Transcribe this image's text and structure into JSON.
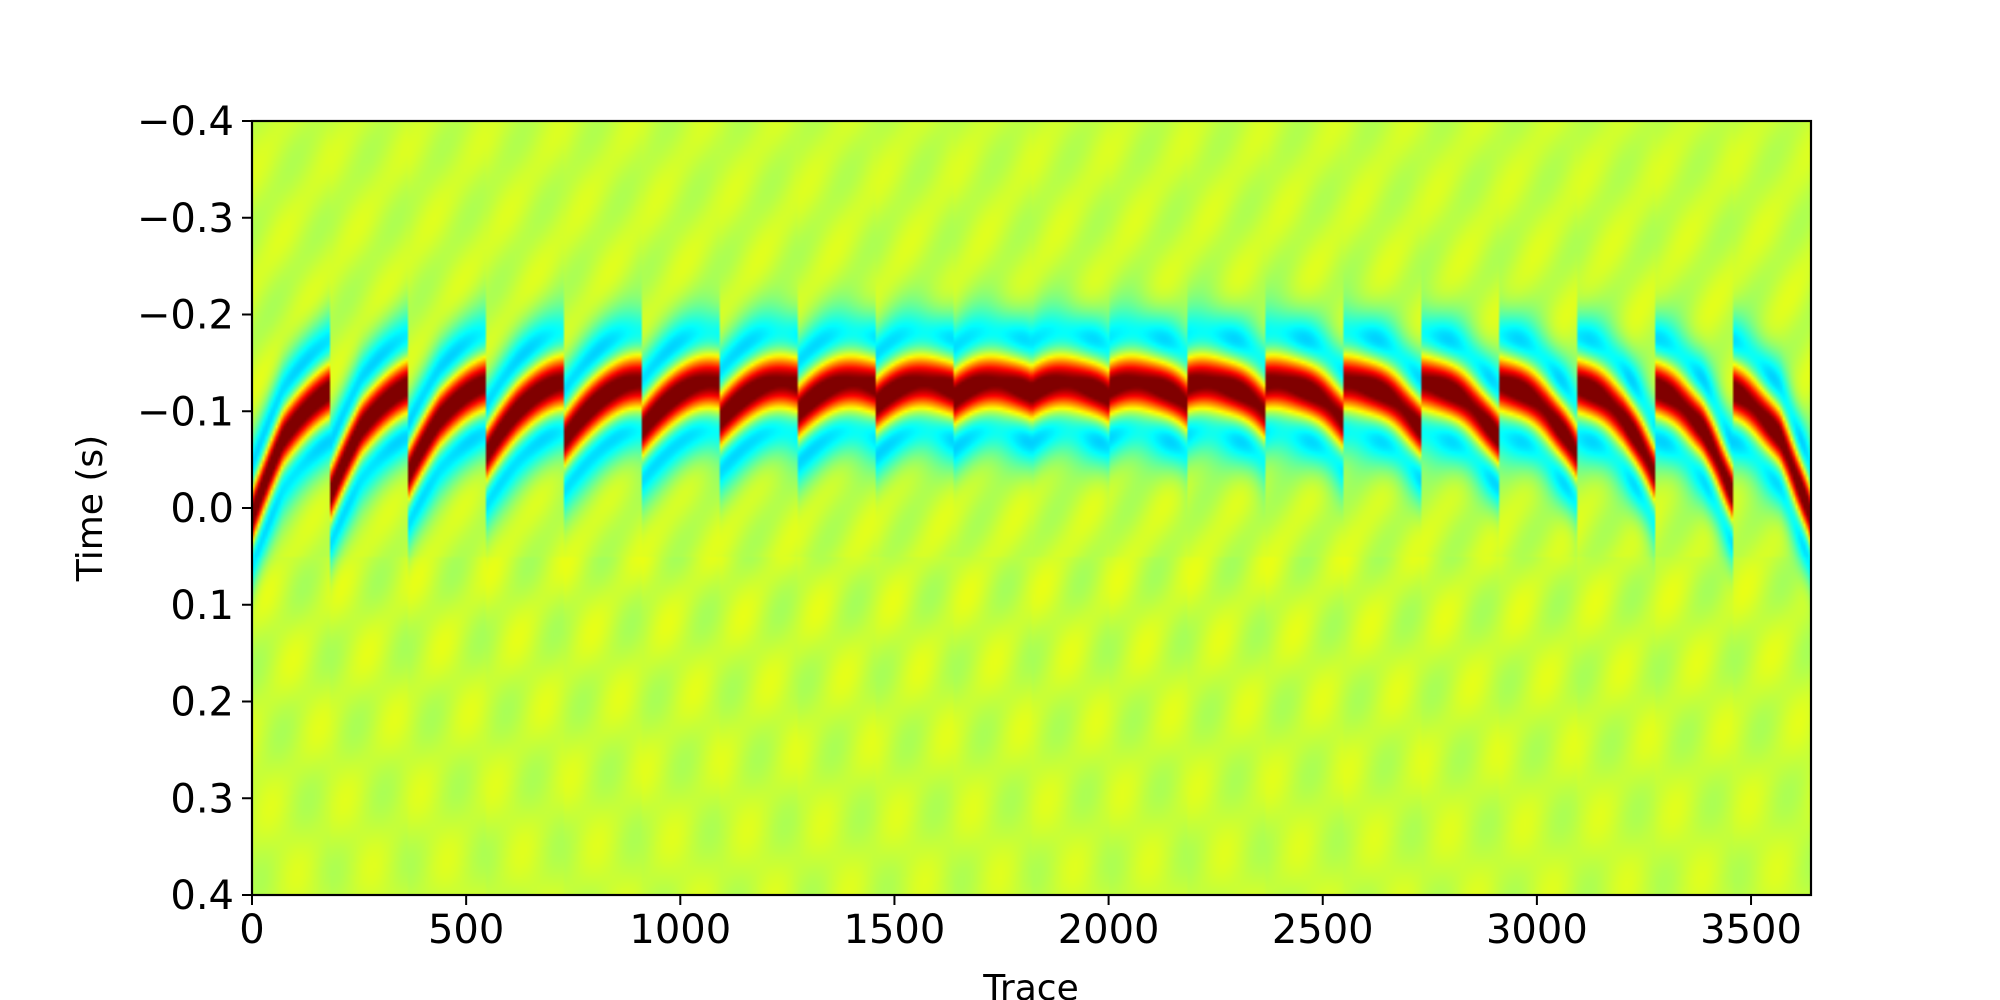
{
  "chart_data": {
    "type": "heatmap",
    "title": "",
    "xlabel": "Trace",
    "ylabel": "Time (s)",
    "xlim": [
      0,
      3640
    ],
    "ylim": [
      -0.4,
      0.4
    ],
    "y_inverted": true,
    "x_ticks": [
      0,
      500,
      1000,
      1500,
      2000,
      2500,
      3000,
      3500
    ],
    "x_tick_labels": [
      "0",
      "500",
      "1000",
      "1500",
      "2000",
      "2500",
      "3000",
      "3500"
    ],
    "y_ticks": [
      -0.4,
      -0.3,
      -0.2,
      -0.1,
      0.0,
      0.1,
      0.2,
      0.3,
      0.4
    ],
    "y_tick_labels": [
      "−0.4",
      "−0.3",
      "−0.2",
      "−0.1",
      "0.0",
      "0.1",
      "0.2",
      "0.3",
      "0.4"
    ],
    "colormap": "jet",
    "grid": false,
    "panels": 20,
    "traces_per_panel": 182,
    "event_peak_time_s": -0.1
  }
}
